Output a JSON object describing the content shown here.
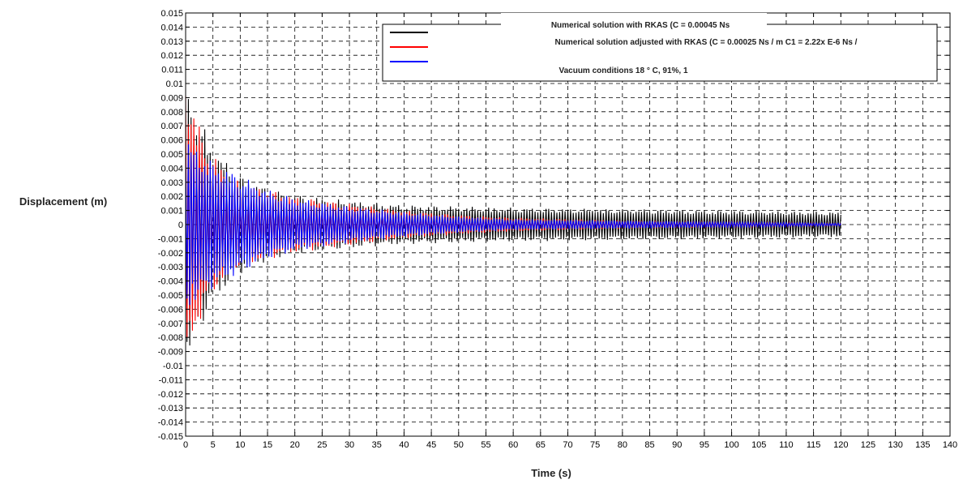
{
  "chart_data": {
    "type": "line",
    "title": "",
    "xlabel": "Time (s)",
    "ylabel": "Displacement (m)",
    "xlim": [
      0,
      140
    ],
    "ylim": [
      -0.015,
      0.015
    ],
    "grid": true,
    "legend_position": "top-right",
    "x_ticks": [
      0,
      5,
      10,
      15,
      20,
      25,
      30,
      35,
      40,
      45,
      50,
      55,
      60,
      65,
      70,
      75,
      80,
      85,
      90,
      95,
      100,
      105,
      110,
      115,
      120,
      125,
      130,
      135,
      140
    ],
    "y_ticks": [
      0.015,
      0.014,
      0.013,
      0.012,
      0.011,
      0.01,
      0.009,
      0.008,
      0.007,
      0.006,
      0.005,
      0.004,
      0.003,
      0.002,
      0.001,
      0,
      -0.001,
      -0.002,
      -0.003,
      -0.004,
      -0.005,
      -0.006,
      -0.007,
      -0.008,
      -0.009,
      -0.01,
      -0.011,
      -0.012,
      -0.013,
      -0.014,
      -0.015
    ],
    "series": [
      {
        "name": "Numerical solution with RKAS (C = 0.00045 Ns",
        "color": "#000000",
        "envelope": {
          "x": [
            0,
            5,
            10,
            15,
            20,
            30,
            40,
            50,
            60,
            80,
            100,
            120
          ],
          "y": [
            0.0098,
            0.0055,
            0.0035,
            0.0026,
            0.0021,
            0.0017,
            0.0014,
            0.0013,
            0.0012,
            0.0011,
            0.001,
            0.0009
          ]
        }
      },
      {
        "name": "Numerical solution adjusted with RKAS (C = 0.00025 Ns / m C1 = 2.22x E-6 Ns /",
        "color": "#ff0000",
        "envelope": {
          "x": [
            0,
            1,
            3,
            5,
            8,
            10,
            15,
            20,
            30,
            40,
            50,
            60,
            80,
            100,
            120
          ],
          "y": [
            0.0105,
            0.009,
            0.0065,
            0.005,
            0.0035,
            0.003,
            0.0025,
            0.002,
            0.0015,
            0.001,
            0.0007,
            0.0005,
            0.0003,
            0.0002,
            0.0001
          ]
        }
      },
      {
        "name": "Vacuum conditions 18 ° C, 91%, 1",
        "color": "#0000ff",
        "envelope": {
          "x": [
            0,
            2,
            5,
            10,
            15,
            20,
            30,
            40,
            50,
            60,
            80,
            100,
            120
          ],
          "y": [
            0.0063,
            0.0055,
            0.0045,
            0.0035,
            0.0025,
            0.0019,
            0.0013,
            0.0009,
            0.0006,
            0.0004,
            0.0003,
            0.0002,
            0.0001
          ]
        }
      }
    ]
  }
}
